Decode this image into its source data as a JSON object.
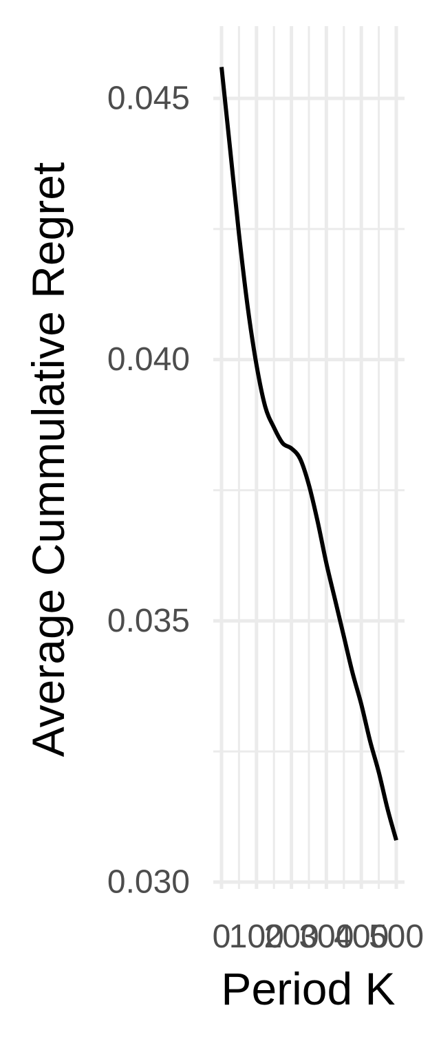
{
  "chart_data": {
    "type": "line",
    "title": "",
    "xlabel": "Period K",
    "ylabel": "Average Cummulative Regret",
    "xlim": [
      0,
      500
    ],
    "ylim": [
      0.0302,
      0.0465
    ],
    "x_ticks": [
      0,
      100,
      200,
      300,
      400,
      500
    ],
    "x_tick_labels": [
      "0",
      "100",
      "200",
      "300",
      "400",
      "500"
    ],
    "y_ticks": [
      0.03,
      0.035,
      0.04,
      0.045
    ],
    "y_tick_labels": [
      "0.030",
      "0.035",
      "0.040",
      "0.045"
    ],
    "grid": true,
    "legend": "none",
    "colors": {
      "line": "#000000",
      "grid": "#ebebeb",
      "tick_text": "#4d4d4d",
      "background": "#ffffff"
    },
    "series": [
      {
        "x": [
          0,
          25,
          50,
          75,
          100,
          125,
          150,
          175,
          200,
          225,
          250,
          275,
          300,
          325,
          350,
          375,
          400,
          425,
          450,
          475,
          500
        ],
        "y": [
          0.0456,
          0.044,
          0.0424,
          0.041,
          0.0399,
          0.0391,
          0.0387,
          0.0384,
          0.0383,
          0.0381,
          0.0376,
          0.0369,
          0.0361,
          0.0354,
          0.0347,
          0.034,
          0.0334,
          0.0327,
          0.0321,
          0.0314,
          0.0308
        ]
      }
    ]
  }
}
